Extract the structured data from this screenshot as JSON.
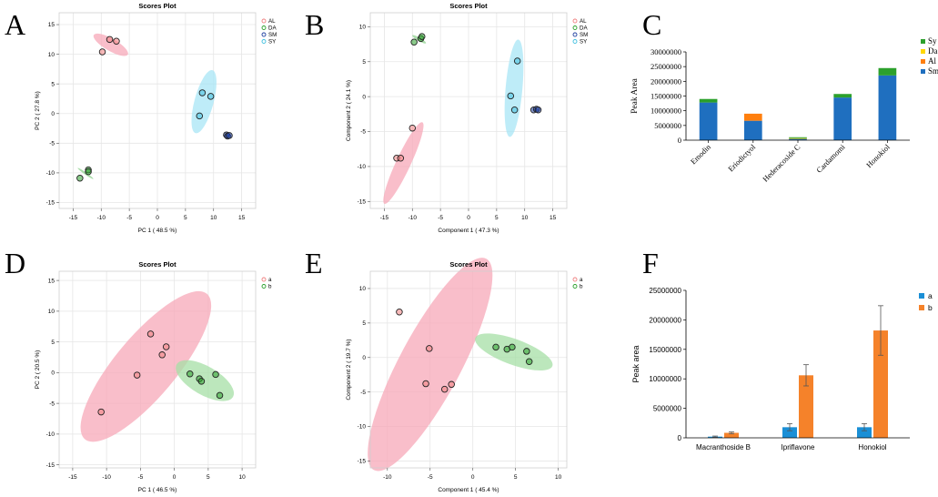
{
  "chart_data": [
    {
      "panel": "A",
      "type": "scatter",
      "title": "Scores Plot",
      "xlabel": "PC 1 ( 48.5 %)",
      "ylabel": "PC 2 ( 27.8 %)",
      "xlim": [
        -17.5,
        17.5
      ],
      "ylim": [
        -16,
        17
      ],
      "xticks": [
        -15,
        -10,
        -5,
        0,
        5,
        10,
        15
      ],
      "yticks": [
        -15,
        -10,
        -5,
        0,
        5,
        10,
        15
      ],
      "grid": true,
      "legend_position": "top-right",
      "series": [
        {
          "name": "AL",
          "color": "#f08080",
          "points": [
            [
              -9.8,
              10.4
            ],
            [
              -8.5,
              12.5
            ],
            [
              -7.3,
              12.2
            ]
          ],
          "ellipse": {
            "cx": -8.3,
            "cy": 11.6,
            "rx": 3.5,
            "ry": 1.1,
            "angle": -30,
            "fill": "#f7a8b8"
          }
        },
        {
          "name": "DA",
          "color": "#2ca02c",
          "points": [
            [
              -12.3,
              -9.5
            ],
            [
              -12.3,
              -9.8
            ],
            [
              -13.8,
              -10.9
            ]
          ],
          "ellipse": {
            "cx": -12.8,
            "cy": -10.1,
            "rx": 1.7,
            "ry": 0.2,
            "angle": -35,
            "fill": "#8fd18f"
          }
        },
        {
          "name": "SM",
          "color": "#1f3fa0",
          "points": [
            [
              12.3,
              -3.6
            ],
            [
              12.5,
              -3.8
            ],
            [
              12.8,
              -3.7
            ]
          ],
          "ellipse": {
            "cx": 12.5,
            "cy": -3.7,
            "rx": 0.7,
            "ry": 0.2,
            "angle": 0,
            "fill": "#7f9fdf"
          }
        },
        {
          "name": "SY",
          "color": "#3fbfdf",
          "points": [
            [
              8,
              3.5
            ],
            [
              9.5,
              2.9
            ],
            [
              7.5,
              -0.4
            ]
          ],
          "ellipse": {
            "cx": 8.3,
            "cy": 2.0,
            "rx": 5.8,
            "ry": 1.7,
            "angle": 75,
            "fill": "#a8e6f5"
          }
        }
      ]
    },
    {
      "panel": "B",
      "type": "scatter",
      "title": "Scores Plot",
      "xlabel": "Component 1 ( 47.3 %)",
      "ylabel": "Component 2 ( 24.1 %)",
      "xlim": [
        -17.5,
        17.5
      ],
      "ylim": [
        -16,
        12
      ],
      "xticks": [
        -15,
        -10,
        -5,
        0,
        5,
        10,
        15
      ],
      "yticks": [
        -15,
        -10,
        -5,
        0,
        5,
        10
      ],
      "grid": true,
      "legend_position": "top-right",
      "series": [
        {
          "name": "AL",
          "color": "#f08080",
          "points": [
            [
              -10,
              -4.5
            ],
            [
              -12.8,
              -8.8
            ],
            [
              -12.1,
              -8.8
            ]
          ],
          "ellipse": {
            "cx": -11.6,
            "cy": -9.5,
            "rx": 8,
            "ry": 1.3,
            "angle": 65,
            "fill": "#f7a8b8"
          }
        },
        {
          "name": "DA",
          "color": "#2ca02c",
          "points": [
            [
              -9.7,
              7.8
            ],
            [
              -8.5,
              8.3
            ],
            [
              -8.3,
              8.6
            ]
          ],
          "ellipse": {
            "cx": -8.8,
            "cy": 8.2,
            "rx": 1.4,
            "ry": 0.3,
            "angle": -30,
            "fill": "#8fd18f"
          }
        },
        {
          "name": "SM",
          "color": "#1f3fa0",
          "points": [
            [
              11.6,
              -1.9
            ],
            [
              12.1,
              -1.8
            ],
            [
              12.4,
              -1.9
            ]
          ],
          "ellipse": {
            "cx": 12.0,
            "cy": -1.9,
            "rx": 0.6,
            "ry": 0.2,
            "angle": 0,
            "fill": "#7f9fdf"
          }
        },
        {
          "name": "SY",
          "color": "#3fbfdf",
          "points": [
            [
              8.7,
              5.1
            ],
            [
              7.5,
              0.1
            ],
            [
              8.2,
              -1.9
            ]
          ],
          "ellipse": {
            "cx": 8.1,
            "cy": 1.2,
            "rx": 8.7,
            "ry": 1.5,
            "angle": 85,
            "fill": "#a8e6f5"
          }
        }
      ]
    },
    {
      "panel": "C",
      "type": "bar",
      "stacked": true,
      "ylabel": "Peak Area",
      "categories": [
        "Emodin",
        "Eriodictyol",
        "Hederacoside C",
        "Cardamomi",
        "Honokiol"
      ],
      "ylim": [
        0,
        30000000
      ],
      "yticks": [
        0,
        5000000,
        10000000,
        15000000,
        20000000,
        25000000,
        30000000
      ],
      "legend_position": "top-right",
      "series": [
        {
          "name": "Sm",
          "color": "#1f6fbf",
          "values": [
            12800000,
            6600000,
            450000,
            14500000,
            22000000
          ]
        },
        {
          "name": "Al",
          "color": "#ff7f0e",
          "values": [
            0,
            2400000,
            0,
            0,
            0
          ]
        },
        {
          "name": "Da",
          "color": "#ffd700",
          "values": [
            0,
            0,
            250000,
            0,
            0
          ]
        },
        {
          "name": "Sy",
          "color": "#2ca02c",
          "values": [
            1200000,
            0,
            300000,
            1200000,
            2500000
          ]
        }
      ]
    },
    {
      "panel": "D",
      "type": "scatter",
      "title": "Scores Plot",
      "xlabel": "PC 1 ( 46.5 %)",
      "ylabel": "PC 2 ( 20.5 %)",
      "xlim": [
        -17,
        12
      ],
      "ylim": [
        -15.5,
        16.5
      ],
      "xticks": [
        -15,
        -10,
        -5,
        0,
        5,
        10
      ],
      "yticks": [
        -15,
        -10,
        -5,
        0,
        5,
        10,
        15
      ],
      "grid": true,
      "legend_position": "top-right",
      "series": [
        {
          "name": "a",
          "color": "#f08080",
          "points": [
            [
              -3.5,
              6.3
            ],
            [
              -1.2,
              4.2
            ],
            [
              -1.8,
              2.9
            ],
            [
              -5.5,
              -0.4
            ],
            [
              -10.8,
              -6.4
            ]
          ],
          "ellipse": {
            "cx": -4.2,
            "cy": 1.0,
            "rx": 14,
            "ry": 4.5,
            "angle": 50,
            "fill": "#f7a8b8"
          }
        },
        {
          "name": "b",
          "color": "#2ca02c",
          "points": [
            [
              2.3,
              -0.2
            ],
            [
              6.1,
              -0.3
            ],
            [
              3.7,
              -1.0
            ],
            [
              4.0,
              -1.4
            ],
            [
              6.7,
              -3.7
            ]
          ],
          "ellipse": {
            "cx": 4.5,
            "cy": -1.3,
            "rx": 4.8,
            "ry": 2.1,
            "angle": -30,
            "fill": "#a5dfa5"
          }
        }
      ]
    },
    {
      "panel": "E",
      "type": "scatter",
      "title": "Scores Plot",
      "xlabel": "Component 1 ( 45.4 %)",
      "ylabel": "Component 2 ( 19.7 %)",
      "xlim": [
        -12,
        11
      ],
      "ylim": [
        -16,
        12.5
      ],
      "xticks": [
        -10,
        -5,
        0,
        5,
        10
      ],
      "yticks": [
        -15,
        -10,
        -5,
        0,
        5,
        10
      ],
      "grid": true,
      "legend_position": "top-right",
      "series": [
        {
          "name": "a",
          "color": "#f08080",
          "points": [
            [
              -8.6,
              6.6
            ],
            [
              -5.1,
              1.3
            ],
            [
              -5.5,
              -3.8
            ],
            [
              -3.3,
              -4.6
            ],
            [
              -2.5,
              -3.9
            ]
          ],
          "ellipse": {
            "cx": -5.0,
            "cy": -1.0,
            "rx": 14,
            "ry": 3.6,
            "angle": 62,
            "fill": "#f7a8b8"
          }
        },
        {
          "name": "b",
          "color": "#2ca02c",
          "points": [
            [
              2.7,
              1.5
            ],
            [
              4.0,
              1.2
            ],
            [
              4.6,
              1.5
            ],
            [
              6.3,
              0.9
            ],
            [
              6.6,
              -0.6
            ]
          ],
          "ellipse": {
            "cx": 4.8,
            "cy": 0.8,
            "rx": 4.8,
            "ry": 1.5,
            "angle": -20,
            "fill": "#a5dfa5"
          }
        }
      ]
    },
    {
      "panel": "F",
      "type": "bar",
      "ylabel": "Peak area",
      "categories": [
        "Macranthoside B",
        "Ipriflavone",
        "Honokiol"
      ],
      "ylim": [
        0,
        25000000
      ],
      "yticks": [
        0,
        5000000,
        10000000,
        15000000,
        20000000,
        25000000
      ],
      "legend_position": "top-right",
      "series": [
        {
          "name": "a",
          "color": "#1a8fd6",
          "values": [
            200000,
            1800000,
            1800000
          ],
          "errors": [
            100000,
            600000,
            600000
          ]
        },
        {
          "name": "b",
          "color": "#f5822a",
          "values": [
            850000,
            10600000,
            18200000
          ],
          "errors": [
            150000,
            1800000,
            4200000
          ]
        }
      ]
    }
  ]
}
